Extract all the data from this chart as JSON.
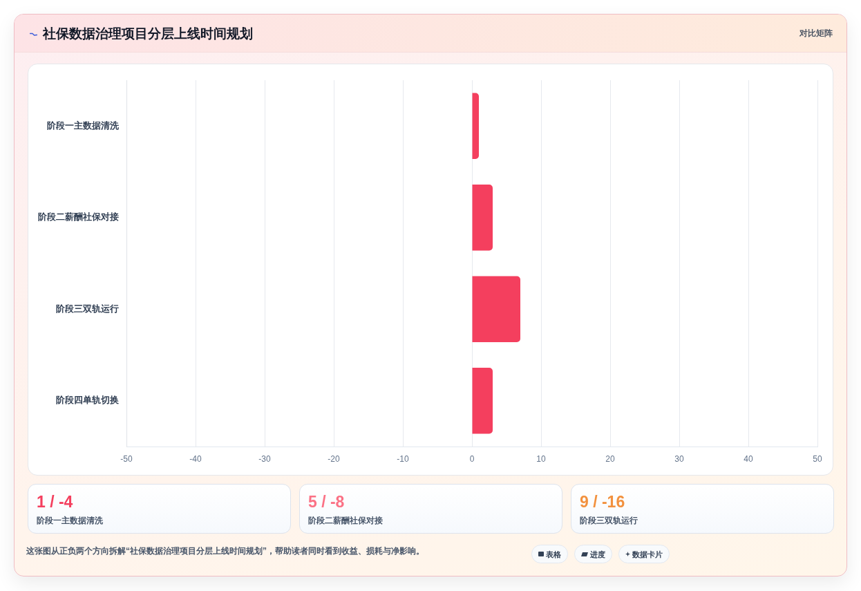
{
  "chart_data": [
    {
      "type": "bar",
      "title": "社保数据治理项目分层上线时间规划",
      "orientation": "horizontal",
      "categories": [
        "阶段一主数据清洗",
        "阶段二薪酬社保对接",
        "阶段三双轨运行",
        "阶段四单轨切换"
      ],
      "values": [
        1,
        3,
        7,
        3
      ],
      "color": "#f43f5e",
      "xlim": [
        -50,
        50
      ],
      "xticks": [
        -50,
        -40,
        -30,
        -20,
        -10,
        0,
        10,
        20,
        30,
        40,
        50
      ],
      "grid": "x",
      "annotations": [
        "对比矩阵"
      ]
    },
    {
      "type": "other",
      "colors": [
        "#f43f5e",
        "#fb7185",
        "#f2913e"
      ],
      "annotations": [
        "1 / -4",
        "阶段一主数据清洗",
        "5 / -8",
        "阶段二薪酬社保对接",
        "9 / -16",
        "阶段三双轨运行",
        "这张图从正负两个方向拆解“社保数据治理项目分层上线时间规划”，帮助读者同时看到收益、损耗与净影响。",
        "表格",
        "进度",
        "数据卡片"
      ]
    }
  ]
}
